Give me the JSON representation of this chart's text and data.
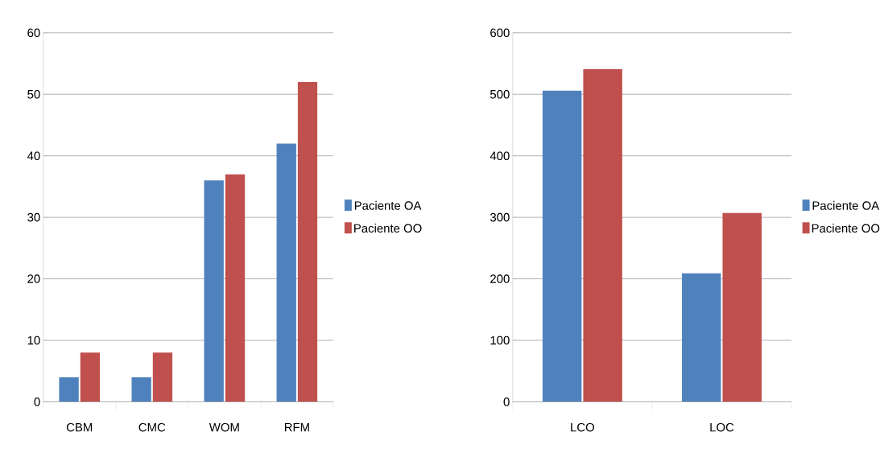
{
  "chart_data": [
    {
      "type": "bar",
      "categories": [
        "CBM",
        "CMC",
        "WOM",
        "RFM"
      ],
      "series": [
        {
          "name": "Paciente OA",
          "color": "#4f81bd",
          "values": [
            4,
            4,
            36,
            42
          ]
        },
        {
          "name": "Paciente OO",
          "color": "#c0504d",
          "values": [
            8,
            8,
            37,
            52
          ]
        }
      ],
      "ylim": [
        0,
        60
      ],
      "yticks": [
        0,
        10,
        20,
        30,
        40,
        50,
        60
      ],
      "grid": "y",
      "legend": "right"
    },
    {
      "type": "bar",
      "categories": [
        "LCO",
        "LOC"
      ],
      "series": [
        {
          "name": "Paciente OA",
          "color": "#4f81bd",
          "values": [
            506,
            209
          ]
        },
        {
          "name": "Paciente OO",
          "color": "#c0504d",
          "values": [
            541,
            307
          ]
        }
      ],
      "ylim": [
        0,
        600
      ],
      "yticks": [
        0,
        100,
        200,
        300,
        400,
        500,
        600
      ],
      "grid": "y",
      "legend": "right"
    }
  ]
}
